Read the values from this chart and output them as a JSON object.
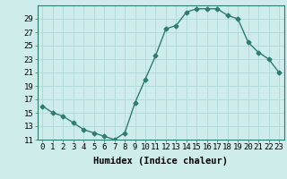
{
  "x": [
    0,
    1,
    2,
    3,
    4,
    5,
    6,
    7,
    8,
    9,
    10,
    11,
    12,
    13,
    14,
    15,
    16,
    17,
    18,
    19,
    20,
    21,
    22,
    23
  ],
  "y": [
    16,
    15,
    14.5,
    13.5,
    12.5,
    12,
    11.5,
    11,
    12,
    16.5,
    20,
    23.5,
    27.5,
    28,
    30,
    30.5,
    30.5,
    30.5,
    29.5,
    29,
    25.5,
    24,
    23,
    21
  ],
  "line_color": "#2e7d6e",
  "marker": "D",
  "marker_size": 2.5,
  "bg_color": "#ceecea",
  "grid_color": "#aed8d4",
  "xlabel": "Humidex (Indice chaleur)",
  "xlabel_fontsize": 7.5,
  "ylim": [
    11,
    31
  ],
  "yticks": [
    11,
    13,
    15,
    17,
    19,
    21,
    23,
    25,
    27,
    29
  ],
  "xlim": [
    -0.5,
    23.5
  ],
  "xtick_labels": [
    "0",
    "1",
    "2",
    "3",
    "4",
    "5",
    "6",
    "7",
    "8",
    "9",
    "10",
    "11",
    "12",
    "13",
    "14",
    "15",
    "16",
    "17",
    "18",
    "19",
    "20",
    "21",
    "22",
    "23"
  ],
  "tick_fontsize": 6.5,
  "line_width": 1.0
}
